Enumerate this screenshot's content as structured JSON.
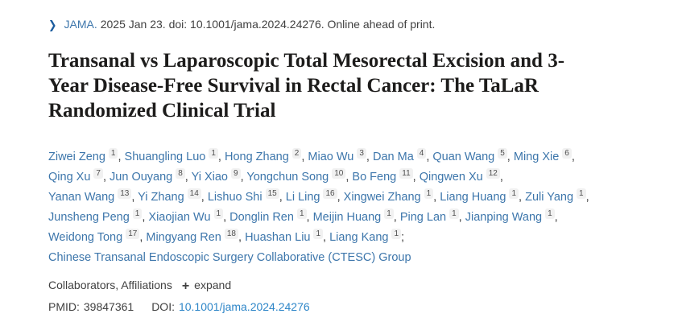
{
  "citation": {
    "journal": "JAMA.",
    "rest": "2025 Jan 23. doi: 10.1001/jama.2024.24276. Online ahead of print."
  },
  "title": "Transanal vs Laparoscopic Total Mesorectal Excision and 3-Year Disease-Free Survival in Rectal Cancer: The TaLaR Randomized Clinical Trial",
  "authors": [
    {
      "name": "Ziwei Zeng",
      "sup": "1"
    },
    {
      "name": "Shuangling Luo",
      "sup": "1"
    },
    {
      "name": "Hong Zhang",
      "sup": "2"
    },
    {
      "name": "Miao Wu",
      "sup": "3"
    },
    {
      "name": "Dan Ma",
      "sup": "4"
    },
    {
      "name": "Quan Wang",
      "sup": "5"
    },
    {
      "name": "Ming Xie",
      "sup": "6",
      "br": true
    },
    {
      "name": "Qing Xu",
      "sup": "7"
    },
    {
      "name": "Jun Ouyang",
      "sup": "8"
    },
    {
      "name": "Yi Xiao",
      "sup": "9"
    },
    {
      "name": "Yongchun Song",
      "sup": "10"
    },
    {
      "name": "Bo Feng",
      "sup": "11"
    },
    {
      "name": "Qingwen Xu",
      "sup": "12",
      "br": true
    },
    {
      "name": "Yanan Wang",
      "sup": "13"
    },
    {
      "name": "Yi Zhang",
      "sup": "14"
    },
    {
      "name": "Lishuo Shi",
      "sup": "15"
    },
    {
      "name": "Li Ling",
      "sup": "16"
    },
    {
      "name": "Xingwei Zhang",
      "sup": "1"
    },
    {
      "name": "Liang Huang",
      "sup": "1"
    },
    {
      "name": "Zuli Yang",
      "sup": "1",
      "br": true
    },
    {
      "name": "Junsheng Peng",
      "sup": "1"
    },
    {
      "name": "Xiaojian Wu",
      "sup": "1"
    },
    {
      "name": "Donglin Ren",
      "sup": "1"
    },
    {
      "name": "Meijin Huang",
      "sup": "1"
    },
    {
      "name": "Ping Lan",
      "sup": "1"
    },
    {
      "name": "Jianping Wang",
      "sup": "1",
      "br": true
    },
    {
      "name": "Weidong Tong",
      "sup": "17"
    },
    {
      "name": "Mingyang Ren",
      "sup": "18"
    },
    {
      "name": "Huashan Liu",
      "sup": "1"
    },
    {
      "name": "Liang Kang",
      "sup": "1",
      "br": true
    }
  ],
  "group": "Chinese Transanal Endoscopic Surgery Collaborative (CTESC) Group",
  "meta": {
    "collaborators_label": "Collaborators, Affiliations",
    "expand_plus": "+",
    "expand_label": "expand",
    "pmid_label": "PMID:",
    "pmid": "39847361",
    "doi_label": "DOI:",
    "doi": "10.1001/jama.2024.24276"
  },
  "colors": {
    "link-blue": "#3d76ab",
    "doi-blue": "#2e86c8",
    "chevron-blue": "#1b5c9e",
    "text": "#414141",
    "title-text": "#1d1c1b",
    "badge-bg": "#f1f1f1",
    "badge-text": "#4f4f4f"
  }
}
